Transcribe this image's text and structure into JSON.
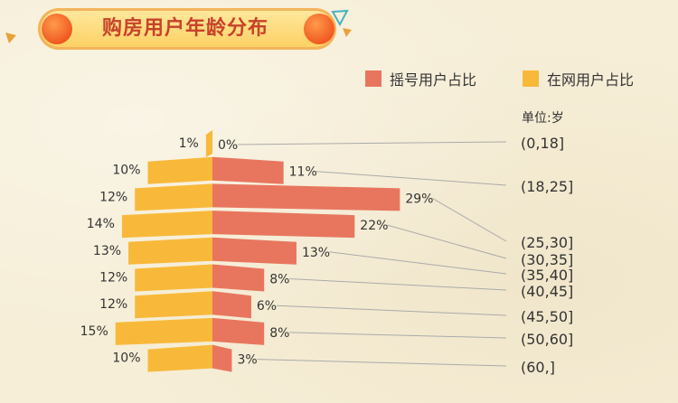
{
  "title": "购房用户年龄分布",
  "unit_label": "单位:岁",
  "colors": {
    "lottery": "#e8765e",
    "online": "#f8b93a"
  },
  "chart_data": {
    "type": "bar",
    "title": "购房用户年龄分布",
    "orientation": "horizontal-butterfly",
    "legend_position": "top-right",
    "categories": [
      "(0,18]",
      "(18,25]",
      "(25,30]",
      "(30,35]",
      "(35,40]",
      "(40,45]",
      "(45,50]",
      "(50,60]",
      "(60,]"
    ],
    "series": [
      {
        "name": "摇号用户占比",
        "values": [
          0,
          11,
          29,
          22,
          13,
          8,
          6,
          8,
          3
        ],
        "labels": [
          "0%",
          "11%",
          "29%",
          "22%",
          "13%",
          "8%",
          "6%",
          "8%",
          "3%"
        ]
      },
      {
        "name": "在网用户占比",
        "values": [
          1,
          10,
          12,
          14,
          13,
          12,
          12,
          15,
          10
        ],
        "labels": [
          "1%",
          "10%",
          "12%",
          "14%",
          "13%",
          "12%",
          "12%",
          "15%",
          "10%"
        ]
      }
    ],
    "unit": "%"
  }
}
